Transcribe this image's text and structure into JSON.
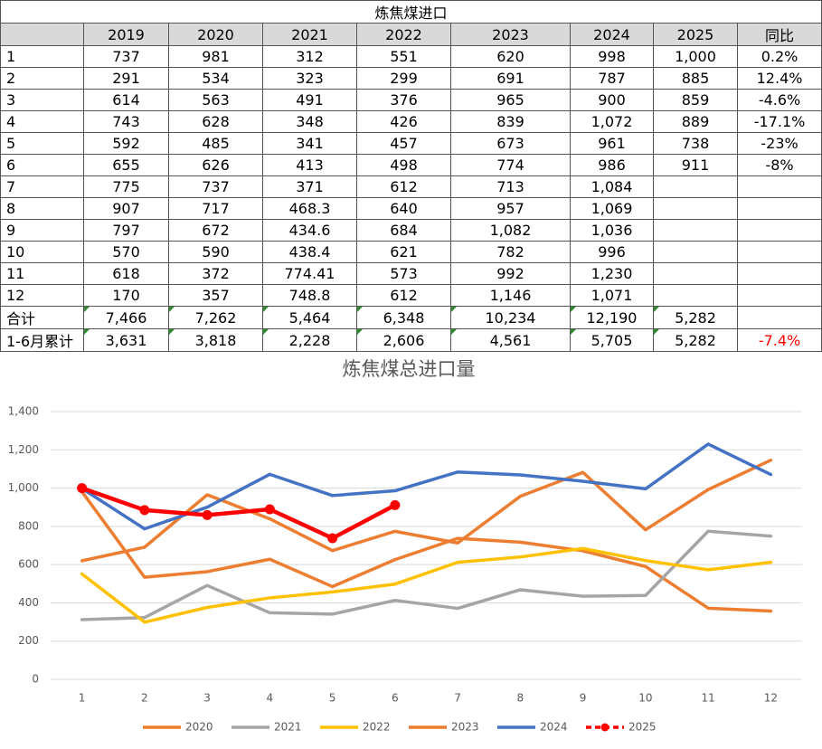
{
  "table": {
    "title": "炼焦煤进口",
    "columns": [
      "2019",
      "2020",
      "2021",
      "2022",
      "2023",
      "2024",
      "2025",
      "同比"
    ],
    "rows": [
      {
        "label": "1",
        "cells": [
          "737",
          "981",
          "312",
          "551",
          "620",
          "998",
          "1,000",
          "0.2%"
        ]
      },
      {
        "label": "2",
        "cells": [
          "291",
          "534",
          "323",
          "299",
          "691",
          "787",
          "885",
          "12.4%"
        ]
      },
      {
        "label": "3",
        "cells": [
          "614",
          "563",
          "491",
          "376",
          "965",
          "900",
          "859",
          "-4.6%"
        ]
      },
      {
        "label": "4",
        "cells": [
          "743",
          "628",
          "348",
          "426",
          "839",
          "1,072",
          "889",
          "-17.1%"
        ]
      },
      {
        "label": "5",
        "cells": [
          "592",
          "485",
          "341",
          "457",
          "673",
          "961",
          "738",
          "-23%"
        ]
      },
      {
        "label": "6",
        "cells": [
          "655",
          "626",
          "413",
          "498",
          "774",
          "986",
          "911",
          "-8%"
        ]
      },
      {
        "label": "7",
        "cells": [
          "775",
          "737",
          "371",
          "612",
          "713",
          "1,084"
        ]
      },
      {
        "label": "8",
        "cells": [
          "907",
          "717",
          "468.3",
          "640",
          "957",
          "1,069"
        ]
      },
      {
        "label": "9",
        "cells": [
          "797",
          "672",
          "434.6",
          "684",
          "1,082",
          "1,036"
        ]
      },
      {
        "label": "10",
        "cells": [
          "570",
          "590",
          "438.4",
          "621",
          "782",
          "996"
        ]
      },
      {
        "label": "11",
        "cells": [
          "618",
          "372",
          "774.41",
          "573",
          "992",
          "1,230"
        ]
      },
      {
        "label": "12",
        "cells": [
          "170",
          "357",
          "748.8",
          "612",
          "1,146",
          "1,071"
        ]
      },
      {
        "label": "合计",
        "cells": [
          "7,466",
          "7,262",
          "5,464",
          "6,348",
          "10,234",
          "12,190",
          "5,282"
        ]
      },
      {
        "label": "1-6月累计",
        "cells": [
          "3,631",
          "3,818",
          "2,228",
          "2,606",
          "4,561",
          "5,705",
          "5,282",
          "-7.4%"
        ]
      }
    ]
  },
  "chart_data": {
    "type": "line",
    "title": "炼焦煤总进口量",
    "categories": [
      "1",
      "2",
      "3",
      "4",
      "5",
      "6",
      "7",
      "8",
      "9",
      "10",
      "11",
      "12"
    ],
    "series": [
      {
        "name": "2020",
        "color": "#ED7D31",
        "values": [
          981,
          534,
          563,
          628,
          485,
          626,
          737,
          717,
          672,
          590,
          372,
          357
        ]
      },
      {
        "name": "2021",
        "color": "#A5A5A5",
        "values": [
          312,
          323,
          491,
          348,
          341,
          413,
          371,
          468.3,
          434.6,
          438.4,
          774.41,
          748.8
        ]
      },
      {
        "name": "2022",
        "color": "#FFC000",
        "values": [
          551,
          299,
          376,
          426,
          457,
          498,
          612,
          640,
          684,
          621,
          573,
          612
        ]
      },
      {
        "name": "2023",
        "color": "#ED7D31",
        "values": [
          620,
          691,
          965,
          839,
          673,
          774,
          713,
          957,
          1082,
          782,
          992,
          1146
        ]
      },
      {
        "name": "2024",
        "color": "#4472C4",
        "values": [
          998,
          787,
          900,
          1072,
          961,
          986,
          1084,
          1069,
          1036,
          996,
          1230,
          1071
        ]
      },
      {
        "name": "2025",
        "color": "#FF0000",
        "markers": true,
        "values": [
          1000,
          885,
          859,
          889,
          738,
          911,
          null,
          null,
          null,
          null,
          null,
          null
        ]
      }
    ],
    "ylim": [
      0,
      1400
    ],
    "yticks": [
      0,
      200,
      400,
      600,
      800,
      {
        "value": 1000,
        "label": "1,000"
      },
      {
        "value": 1200,
        "label": "1,200"
      },
      {
        "value": 1400,
        "label": "1,400"
      }
    ],
    "grid": true,
    "legend": "bottom"
  }
}
